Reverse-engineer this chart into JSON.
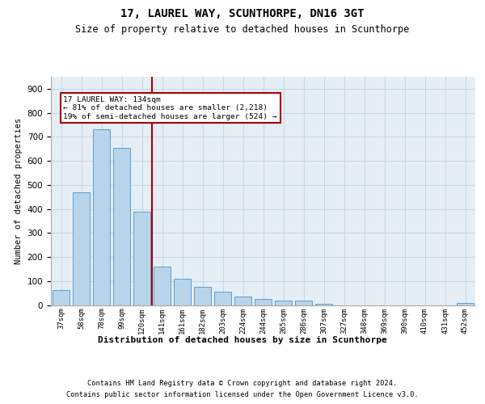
{
  "title1": "17, LAUREL WAY, SCUNTHORPE, DN16 3GT",
  "title2": "Size of property relative to detached houses in Scunthorpe",
  "xlabel": "Distribution of detached houses by size in Scunthorpe",
  "ylabel": "Number of detached properties",
  "categories": [
    "37sqm",
    "58sqm",
    "78sqm",
    "99sqm",
    "120sqm",
    "141sqm",
    "161sqm",
    "182sqm",
    "203sqm",
    "224sqm",
    "244sqm",
    "265sqm",
    "286sqm",
    "307sqm",
    "327sqm",
    "348sqm",
    "369sqm",
    "390sqm",
    "410sqm",
    "431sqm",
    "452sqm"
  ],
  "values": [
    62,
    470,
    730,
    655,
    390,
    160,
    110,
    75,
    55,
    35,
    25,
    20,
    18,
    6,
    0,
    0,
    0,
    0,
    0,
    0,
    7
  ],
  "bar_color": "#b8d4ea",
  "bar_edge_color": "#5a9fd4",
  "vline_pos": 4.5,
  "vline_color": "#aa0000",
  "annotation_line1": "17 LAUREL WAY: 134sqm",
  "annotation_line2": "← 81% of detached houses are smaller (2,218)",
  "annotation_line3": "19% of semi-detached houses are larger (524) →",
  "grid_color": "#c8d8e8",
  "background_color": "#e6eef5",
  "ylim": [
    0,
    950
  ],
  "yticks": [
    0,
    100,
    200,
    300,
    400,
    500,
    600,
    700,
    800,
    900
  ],
  "footer1": "Contains HM Land Registry data © Crown copyright and database right 2024.",
  "footer2": "Contains public sector information licensed under the Open Government Licence v3.0."
}
